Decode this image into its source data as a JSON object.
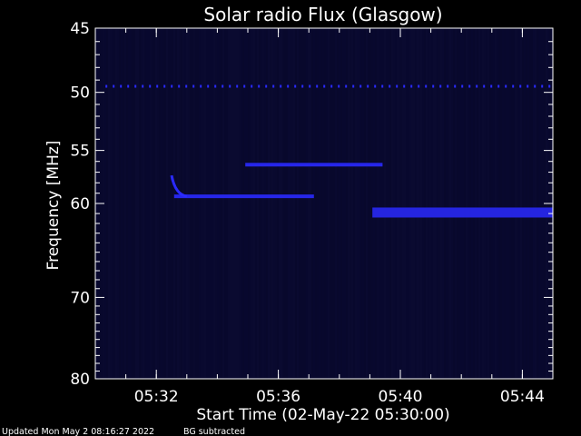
{
  "chart_data": {
    "type": "heatmap",
    "title": "Solar radio Flux (Glasgow)",
    "xlabel": "Start Time (02-May-22 05:30:00)",
    "ylabel": "Frequency [MHz]",
    "x_unit": "time (HH:MM UT)",
    "xlim": [
      "05:30:00",
      "05:45:00"
    ],
    "ylim": [
      45,
      80
    ],
    "y_scale": "log",
    "x_ticks": [
      "05:32",
      "05:36",
      "05:40",
      "05:44"
    ],
    "y_ticks": [
      45,
      50,
      55,
      60,
      70,
      80
    ],
    "grid": false,
    "colors": {
      "background": "#000000",
      "plot_background": "#07072a",
      "emission": "#2a2aff",
      "axes": "#ffffff"
    },
    "features": [
      {
        "kind": "interference_line",
        "frequency_mhz": 49.5,
        "t_start": "05:30:20",
        "t_end": "05:45:00"
      },
      {
        "kind": "burst_lane",
        "frequency_mhz": 56.3,
        "t_start": "05:34:55",
        "t_end": "05:39:25"
      },
      {
        "kind": "burst_lane",
        "frequency_mhz": 59.3,
        "t_start": "05:32:35",
        "t_end": "05:37:10"
      },
      {
        "kind": "burst_onset",
        "frequency_mhz_start": 57.3,
        "frequency_mhz_end": 59.3,
        "t_start": "05:32:30",
        "t_end": "05:33:00"
      },
      {
        "kind": "band",
        "frequency_mhz_low": 60.4,
        "frequency_mhz_high": 61.4,
        "t_start": "05:39:05",
        "t_end": "05:45:00"
      }
    ]
  },
  "footer": {
    "updated": "Updated Mon May  2 08:16:27 2022",
    "note": "BG subtracted"
  }
}
